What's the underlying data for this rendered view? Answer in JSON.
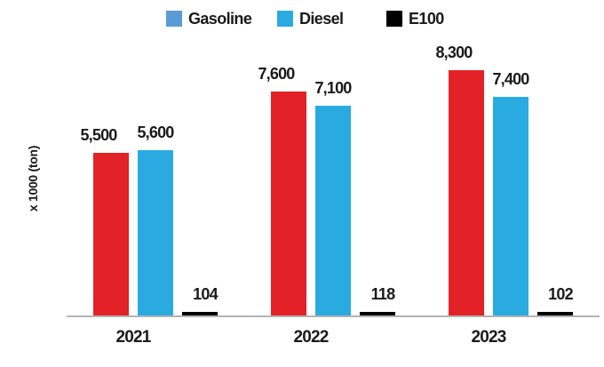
{
  "chart_data": {
    "type": "bar",
    "categories": [
      "2021",
      "2022",
      "2023"
    ],
    "series": [
      {
        "name": "Gasoline",
        "bar_color": "#e32227",
        "legend_color": "#5b9bd5",
        "values": [
          5500,
          7600,
          8300
        ],
        "value_labels": [
          "5,500",
          "7,600",
          "8,300"
        ]
      },
      {
        "name": "Diesel",
        "bar_color": "#29abe2",
        "legend_color": "#29abe2",
        "values": [
          5600,
          7100,
          7400
        ],
        "value_labels": [
          "5,600",
          "7,100",
          "7,400"
        ]
      },
      {
        "name": "E100",
        "bar_color": "#000000",
        "legend_color": "#000000",
        "values": [
          104,
          118,
          102
        ],
        "value_labels": [
          "104",
          "118",
          "102"
        ]
      }
    ],
    "title": "",
    "xlabel": "",
    "ylabel": "x 1000 (ton)",
    "ylim": [
      0,
      8800
    ],
    "grid": false,
    "legend_position": "top",
    "value_labels_shown": true,
    "axis_line_color": "#b3b3b3",
    "text_color": "#1a1a1a"
  }
}
